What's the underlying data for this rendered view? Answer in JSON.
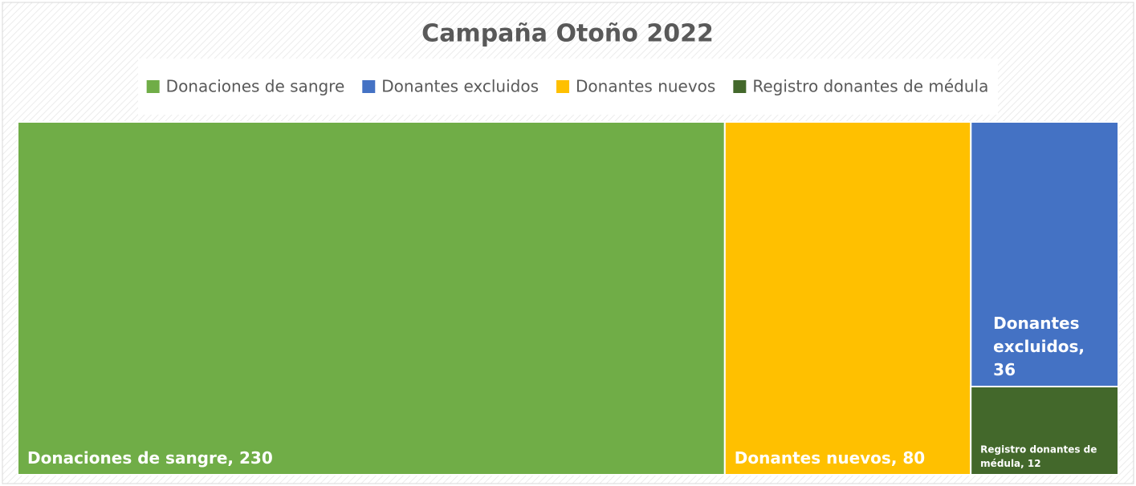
{
  "chart_data": {
    "type": "treemap",
    "title": "Campaña Otoño 2022",
    "categories": [
      "Donaciones de sangre",
      "Donantes excluidos",
      "Donantes nuevos",
      "Registro donantes de médula"
    ],
    "values": [
      230,
      36,
      80,
      12
    ],
    "value_labels": [
      "Donaciones de sangre, 230",
      "Donantes excluidos, 36",
      "Donantes nuevos, 80",
      "Registro donantes de médula, 12"
    ],
    "colors": [
      "#70ad47",
      "#4472c4",
      "#ffc000",
      "#43682b"
    ],
    "legend": "top"
  }
}
